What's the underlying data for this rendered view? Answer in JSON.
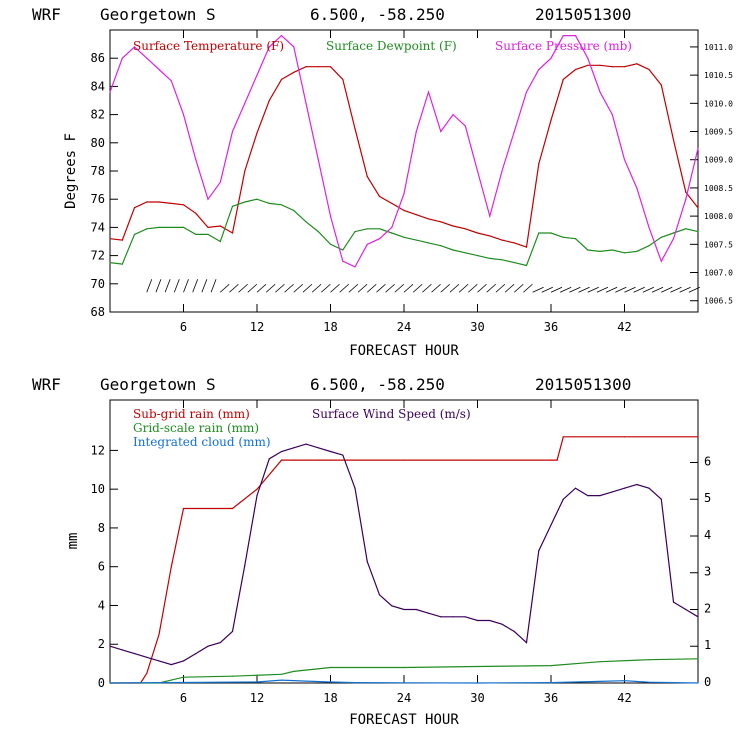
{
  "panels": [
    {
      "header": {
        "model": "WRF",
        "location": "Georgetown S",
        "coords": "6.500, -58.250",
        "init": "2015051300"
      },
      "legend": [
        {
          "label": "Surface Temperature (F)",
          "color": "#c00000"
        },
        {
          "label": "Surface Dewpoint (F)",
          "color": "#1f8c1f"
        },
        {
          "label": "Surface Pressure (mb)",
          "color": "#e020e0"
        }
      ]
    },
    {
      "header": {
        "model": "WRF",
        "location": "Georgetown S",
        "coords": "6.500, -58.250",
        "init": "2015051300"
      },
      "legend": [
        {
          "label": "Sub-grid rain (mm)",
          "color": "#c00000"
        },
        {
          "label": "Surface Wind Speed (m/s)",
          "color": "#3a005a"
        },
        {
          "label": "Grid-scale rain (mm)",
          "color": "#1f8c1f"
        },
        {
          "label": "Integrated cloud (mm)",
          "color": "#1070d0"
        }
      ]
    }
  ],
  "chart_data": [
    {
      "type": "line",
      "xlabel": "FORECAST HOUR",
      "ylabel": "Degrees F",
      "xlim": [
        0,
        48
      ],
      "ylim": [
        68,
        88
      ],
      "y2lim": [
        1006.3,
        1011.3
      ],
      "xticks": [
        6,
        12,
        18,
        24,
        30,
        36,
        42
      ],
      "yticks": [
        68,
        70,
        72,
        74,
        76,
        78,
        80,
        82,
        84,
        86
      ],
      "y2ticks": [
        "1006.5",
        "1007.0",
        "1007.5",
        "1008.0",
        "1008.5",
        "1009.0",
        "1009.5",
        "1010.0",
        "1010.5",
        "1011.0"
      ],
      "series": [
        {
          "name": "Surface Temperature (F)",
          "axis": "left",
          "color": "#c00000",
          "x": [
            0,
            1,
            2,
            3,
            4,
            5,
            6,
            7,
            8,
            9,
            10,
            11,
            12,
            13,
            14,
            15,
            16,
            17,
            18,
            19,
            20,
            21,
            22,
            23,
            24,
            25,
            26,
            27,
            28,
            29,
            30,
            31,
            32,
            33,
            34,
            35,
            36,
            37,
            38,
            39,
            40,
            41,
            42,
            43,
            44,
            45,
            46,
            47,
            48
          ],
          "y": [
            73.2,
            73.1,
            75.4,
            75.8,
            75.8,
            75.7,
            75.6,
            75,
            74,
            74.1,
            73.6,
            78,
            80.7,
            83,
            84.5,
            85,
            85.4,
            85.4,
            85.4,
            84.5,
            81,
            77.6,
            76.2,
            75.7,
            75.2,
            74.9,
            74.6,
            74.4,
            74.1,
            73.9,
            73.6,
            73.4,
            73.1,
            72.9,
            72.6,
            78.5,
            81.6,
            84.5,
            85.2,
            85.5,
            85.5,
            85.4,
            85.4,
            85.6,
            85.2,
            84.1,
            80.2,
            76.5,
            75.4
          ]
        },
        {
          "name": "Surface Dewpoint (F)",
          "axis": "left",
          "color": "#1f8c1f",
          "x": [
            0,
            1,
            2,
            3,
            4,
            5,
            6,
            7,
            8,
            9,
            10,
            11,
            12,
            13,
            14,
            15,
            16,
            17,
            18,
            19,
            20,
            21,
            22,
            23,
            24,
            25,
            26,
            27,
            28,
            29,
            30,
            31,
            32,
            33,
            34,
            35,
            36,
            37,
            38,
            39,
            40,
            41,
            42,
            43,
            44,
            45,
            46,
            47,
            48
          ],
          "y": [
            71.5,
            71.4,
            73.5,
            73.9,
            74,
            74,
            74,
            73.5,
            73.5,
            73,
            75.5,
            75.8,
            76,
            75.7,
            75.6,
            75.2,
            74.4,
            73.7,
            72.8,
            72.4,
            73.7,
            73.9,
            73.9,
            73.6,
            73.3,
            73.1,
            72.9,
            72.7,
            72.4,
            72.2,
            72,
            71.8,
            71.7,
            71.5,
            71.3,
            73.6,
            73.6,
            73.3,
            73.2,
            72.4,
            72.3,
            72.4,
            72.2,
            72.3,
            72.7,
            73.3,
            73.6,
            73.9,
            73.7
          ]
        },
        {
          "name": "Surface Pressure (mb)",
          "axis": "right",
          "color": "#e020e0",
          "x": [
            0,
            1,
            2,
            3,
            4,
            5,
            6,
            7,
            8,
            9,
            10,
            11,
            12,
            13,
            14,
            15,
            16,
            17,
            18,
            19,
            20,
            21,
            22,
            23,
            24,
            25,
            26,
            27,
            28,
            29,
            30,
            31,
            32,
            33,
            34,
            35,
            36,
            37,
            38,
            39,
            40,
            41,
            42,
            43,
            44,
            45,
            46,
            47,
            48
          ],
          "y": [
            1010.2,
            1010.8,
            1011.0,
            1010.8,
            1010.6,
            1010.4,
            1009.8,
            1009.0,
            1008.3,
            1008.6,
            1009.5,
            1010.0,
            1010.5,
            1011.0,
            1011.2,
            1011.0,
            1010.0,
            1009.0,
            1008.0,
            1007.2,
            1007.1,
            1007.5,
            1007.6,
            1007.8,
            1008.4,
            1009.5,
            1010.2,
            1009.5,
            1009.8,
            1009.6,
            1008.8,
            1008.0,
            1008.8,
            1009.5,
            1010.2,
            1010.6,
            1010.8,
            1011.2,
            1011.2,
            1010.8,
            1010.2,
            1009.8,
            1009.0,
            1008.5,
            1007.8,
            1007.2,
            1007.6,
            1008.3,
            1009.2
          ]
        }
      ]
    },
    {
      "type": "line",
      "xlabel": "FORECAST HOUR",
      "ylabel": "mm",
      "xlim": [
        0,
        48
      ],
      "ylim": [
        0,
        14.6
      ],
      "y2lim": [
        0,
        7.7
      ],
      "xticks": [
        6,
        12,
        18,
        24,
        30,
        36,
        42
      ],
      "yticks": [
        0,
        2,
        4,
        6,
        8,
        10,
        12
      ],
      "y2ticks": [
        0,
        1,
        2,
        3,
        4,
        5,
        6
      ],
      "series": [
        {
          "name": "Sub-grid rain (mm)",
          "axis": "left",
          "color": "#c00000",
          "x": [
            0,
            2,
            2.5,
            3,
            4,
            5,
            6,
            8,
            10,
            12,
            14,
            15,
            17,
            18,
            24,
            30,
            36,
            36.5,
            37,
            42,
            48
          ],
          "y": [
            0,
            0,
            0,
            0.5,
            2.5,
            6,
            9,
            9,
            9,
            10,
            11.5,
            11.5,
            11.5,
            11.5,
            11.5,
            11.5,
            11.5,
            11.5,
            12.7,
            12.7,
            12.7
          ]
        },
        {
          "name": "Surface Wind Speed (m/s)",
          "axis": "right",
          "color": "#3a005a",
          "x": [
            0,
            1,
            2,
            3,
            4,
            5,
            6,
            7,
            8,
            9,
            10,
            11,
            12,
            13,
            14,
            15,
            16,
            17,
            18,
            19,
            20,
            21,
            22,
            23,
            24,
            25,
            26,
            27,
            28,
            29,
            30,
            31,
            32,
            33,
            34,
            35,
            36,
            37,
            38,
            39,
            40,
            41,
            42,
            43,
            44,
            45,
            46,
            47,
            48
          ],
          "y": [
            1.0,
            0.9,
            0.8,
            0.7,
            0.6,
            0.5,
            0.6,
            0.8,
            1.0,
            1.1,
            1.4,
            3.2,
            5.1,
            6.1,
            6.3,
            6.4,
            6.5,
            6.4,
            6.3,
            6.2,
            5.3,
            3.3,
            2.4,
            2.1,
            2.0,
            2.0,
            1.9,
            1.8,
            1.8,
            1.8,
            1.7,
            1.7,
            1.6,
            1.4,
            1.1,
            3.6,
            4.3,
            5.0,
            5.3,
            5.1,
            5.1,
            5.2,
            5.3,
            5.4,
            5.3,
            5.0,
            2.2,
            2.0,
            1.8
          ]
        },
        {
          "name": "Grid-scale rain (mm)",
          "axis": "left",
          "color": "#1f8c1f",
          "x": [
            0,
            4,
            5,
            6,
            10,
            14,
            15,
            18,
            24,
            30,
            36,
            40,
            44,
            48
          ],
          "y": [
            0,
            0,
            0.15,
            0.3,
            0.35,
            0.45,
            0.6,
            0.8,
            0.8,
            0.85,
            0.9,
            1.1,
            1.2,
            1.25
          ]
        },
        {
          "name": "Integrated cloud (mm)",
          "axis": "left",
          "color": "#1070d0",
          "x": [
            0,
            12,
            14,
            16,
            18,
            20,
            24,
            30,
            36,
            40,
            42,
            44,
            48
          ],
          "y": [
            0,
            0.05,
            0.15,
            0.1,
            0.05,
            0.02,
            0.01,
            0,
            0.02,
            0.08,
            0.12,
            0.04,
            0
          ]
        }
      ]
    }
  ]
}
